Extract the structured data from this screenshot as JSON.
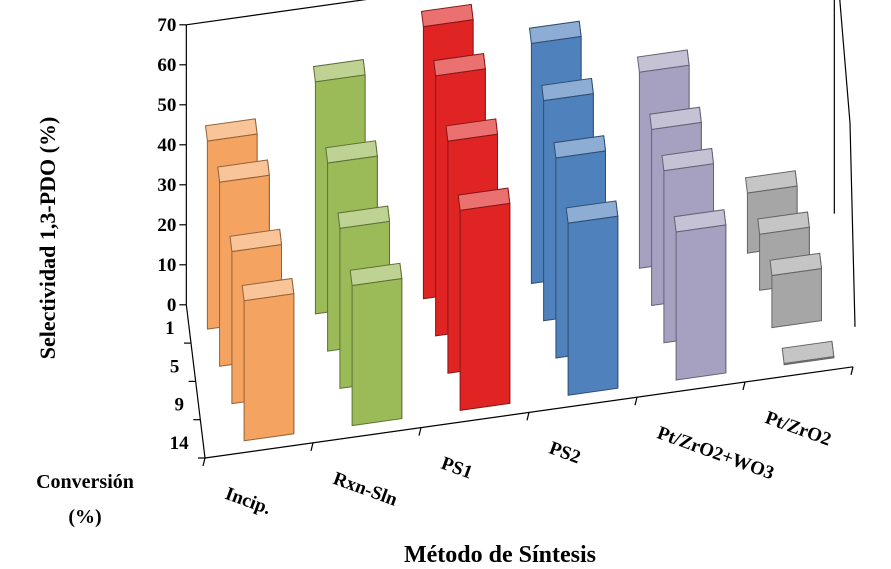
{
  "chart_data": {
    "type": "bar",
    "subtype": "3d-grouped-bar",
    "ylabel": "Selectividad 1,3-PDO (%)",
    "xlabel": "Método de Síntesis",
    "zlabel": "Conversión (%)",
    "ylim": [
      0,
      70
    ],
    "yticks": [
      "0",
      "10",
      "20",
      "30",
      "40",
      "50",
      "60",
      "70"
    ],
    "depth_categories": [
      "1",
      "5",
      "9",
      "14"
    ],
    "categories": [
      "Incip.",
      "Rxn-Sln",
      "PS1",
      "PS2",
      "Pt/ZrO2+WO3",
      "Pt/ZrO2"
    ],
    "colors": [
      "#F4A460",
      "#9BBB59",
      "#E02424",
      "#4F81BD",
      "#A6A1C0",
      "#A6A6A6"
    ],
    "series": [
      {
        "conversion": "1",
        "values": [
          47,
          58,
          68,
          60,
          49,
          15
        ]
      },
      {
        "conversion": "5",
        "values": [
          46,
          47,
          65,
          55,
          44,
          14
        ]
      },
      {
        "conversion": "9",
        "values": [
          38,
          40,
          58,
          50,
          43,
          13
        ]
      },
      {
        "conversion": "14",
        "values": [
          35,
          35,
          50,
          43,
          37,
          0.3
        ]
      }
    ]
  }
}
